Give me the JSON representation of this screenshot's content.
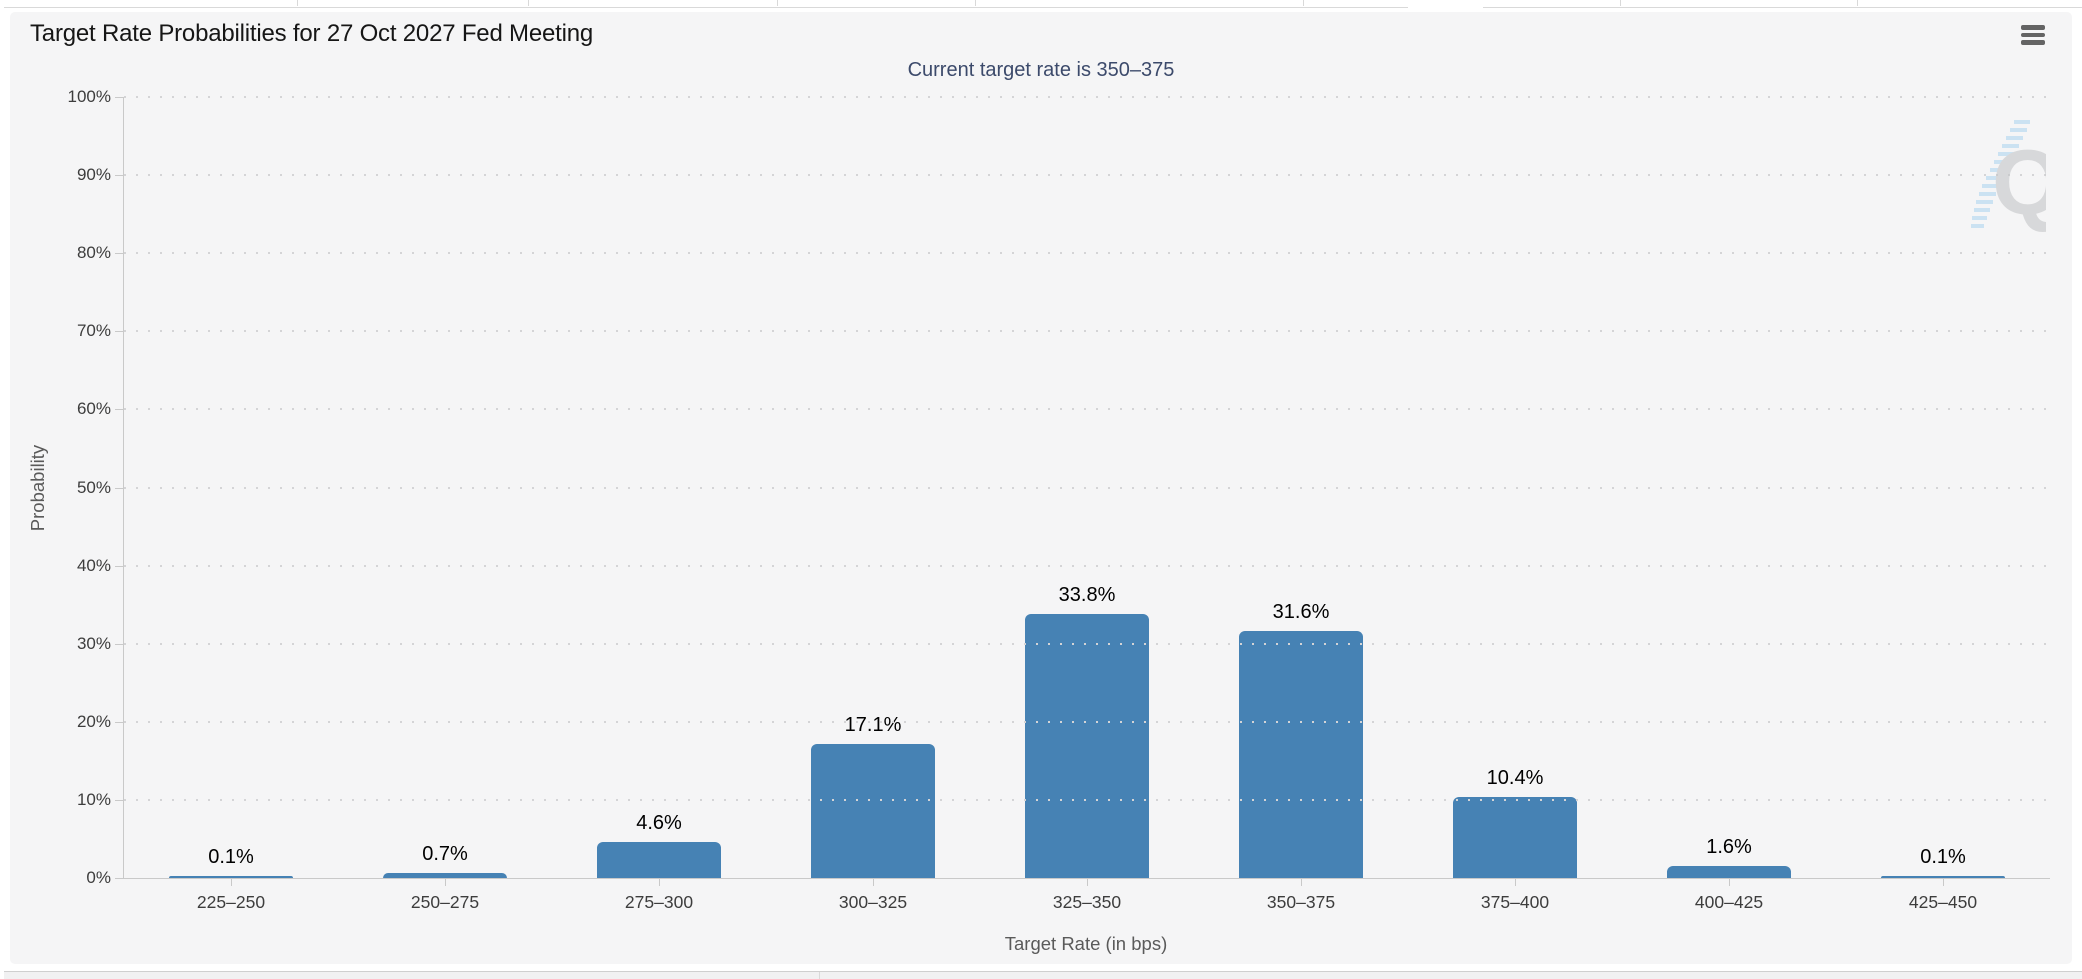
{
  "chart_data": {
    "type": "bar",
    "title": "Target Rate Probabilities for 27 Oct 2027 Fed Meeting",
    "subtitle": "Current target rate is 350–375",
    "categories": [
      "225–250",
      "250–275",
      "275–300",
      "300–325",
      "325–350",
      "350–375",
      "375–400",
      "400–425",
      "425–450"
    ],
    "values": [
      0.1,
      0.7,
      4.6,
      17.1,
      33.8,
      31.6,
      10.4,
      1.6,
      0.1
    ],
    "value_labels": [
      "0.1%",
      "0.7%",
      "4.6%",
      "17.1%",
      "33.8%",
      "31.6%",
      "10.4%",
      "1.6%",
      "0.1%"
    ],
    "xlabel": "Target Rate (in bps)",
    "ylabel": "Probability",
    "ylim": [
      0,
      100
    ],
    "ytick_step": 10,
    "ytick_labels": [
      "0%",
      "10%",
      "20%",
      "30%",
      "40%",
      "50%",
      "60%",
      "70%",
      "80%",
      "90%",
      "100%"
    ],
    "grid": "dotted horizontal",
    "legend": "none",
    "bar_color": "#4682b4"
  },
  "toolbar": {
    "menu_icon": "hamburger-menu-icon"
  },
  "watermark": {
    "icon": "quikstrike-q-logo",
    "letter": "Q"
  },
  "colors": {
    "bar": "#4682b4",
    "subtitle_text": "#3c4a6b",
    "card_background": "#f5f5f6",
    "axis_line": "#c9c9c9",
    "grid_dots": "#d4d4d6",
    "watermark_gray": "#c4c6c8",
    "watermark_blue": "#a5d2f0"
  }
}
